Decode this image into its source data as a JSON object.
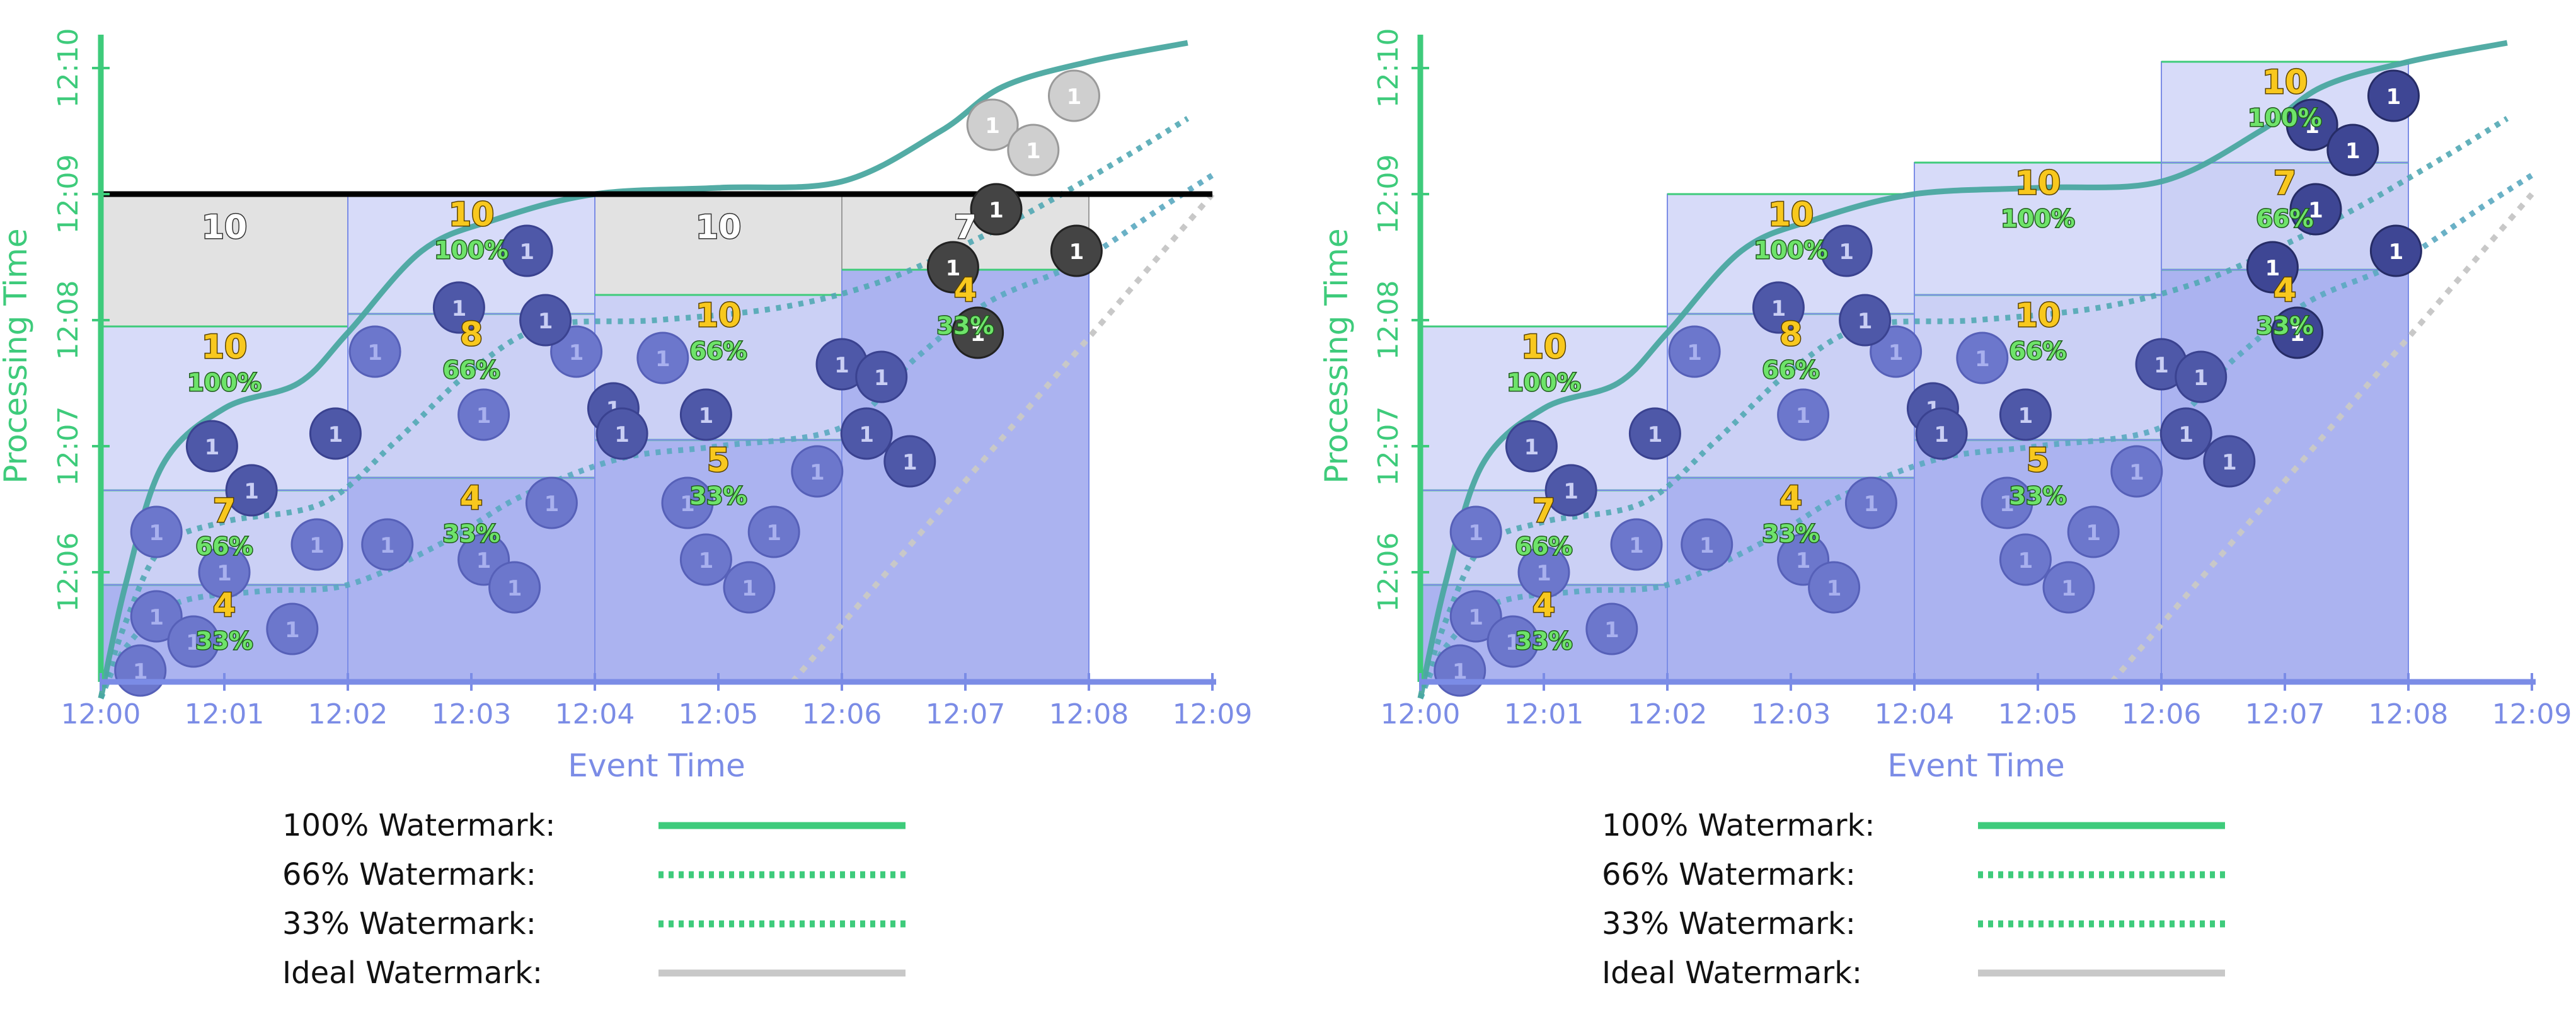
{
  "colors": {
    "green": "#3ecb7b",
    "teal": "#4aa8a0",
    "blue_axis": "#7b8ce6",
    "black_line": "#000000",
    "ideal": "#c8c8c8",
    "yellow": "#f8c81e",
    "yellow_outline": "#5a4300"
  },
  "axes": {
    "x_title": "Event Time",
    "y_title": "Processing Time",
    "x_ticks": [
      "12:00",
      "12:01",
      "12:02",
      "12:03",
      "12:04",
      "12:05",
      "12:06",
      "12:07",
      "12:08",
      "12:09"
    ],
    "y_ticks": [
      "12:06",
      "12:07",
      "12:08",
      "12:09",
      "12:10"
    ],
    "coin_label": "1"
  },
  "legend": [
    {
      "label": "100% Watermark:",
      "style": "solid",
      "color": "#3ecb7b"
    },
    {
      "label": "66% Watermark:",
      "style": "dotted",
      "color": "#3ecb7b"
    },
    {
      "label": "33% Watermark:",
      "style": "dotted",
      "color": "#3ecb7b"
    },
    {
      "label": "Ideal Watermark:",
      "style": "solid",
      "color": "#c8c8c8"
    }
  ],
  "panels": [
    {
      "name": "left",
      "windows": [
        {
          "start": 0,
          "end": 2,
          "panes": [
            {
              "bottom": 5,
              "top": 5.9,
              "count": "4",
              "pct": "33%"
            },
            {
              "bottom": 5.9,
              "top": 6.65,
              "count": "7",
              "pct": "66%"
            },
            {
              "bottom": 6.65,
              "top": 7.95,
              "count": "10",
              "pct": "100%"
            }
          ],
          "cap": {
            "top": 9.0,
            "count": "10"
          }
        },
        {
          "start": 2,
          "end": 4,
          "panes": [
            {
              "bottom": 5,
              "top": 6.75,
              "count": "4",
              "pct": "33%"
            },
            {
              "bottom": 6.75,
              "top": 8.05,
              "count": "8",
              "pct": "66%"
            },
            {
              "bottom": 8.05,
              "top": 9.0,
              "count": "10",
              "pct": "100%"
            }
          ]
        },
        {
          "start": 4,
          "end": 6,
          "panes": [
            {
              "bottom": 5,
              "top": 7.05,
              "count": "5",
              "pct": "33%"
            },
            {
              "bottom": 7.05,
              "top": 8.2,
              "count": "10",
              "pct": "66%"
            }
          ],
          "cap": {
            "top": 9.0,
            "count": "10"
          }
        },
        {
          "start": 6,
          "end": 8,
          "panes": [
            {
              "bottom": 5,
              "top": 8.4,
              "count": "4",
              "pct": "33%"
            }
          ],
          "cap": {
            "top": 9.0,
            "count": "7"
          }
        }
      ],
      "cutoff": 9.0
    },
    {
      "name": "right",
      "windows": [
        {
          "start": 0,
          "end": 2,
          "panes": [
            {
              "bottom": 5,
              "top": 5.9,
              "count": "4",
              "pct": "33%"
            },
            {
              "bottom": 5.9,
              "top": 6.65,
              "count": "7",
              "pct": "66%"
            },
            {
              "bottom": 6.65,
              "top": 7.95,
              "count": "10",
              "pct": "100%"
            }
          ]
        },
        {
          "start": 2,
          "end": 4,
          "panes": [
            {
              "bottom": 5,
              "top": 6.75,
              "count": "4",
              "pct": "33%"
            },
            {
              "bottom": 6.75,
              "top": 8.05,
              "count": "8",
              "pct": "66%"
            },
            {
              "bottom": 8.05,
              "top": 9.0,
              "count": "10",
              "pct": "100%"
            }
          ]
        },
        {
          "start": 4,
          "end": 6,
          "panes": [
            {
              "bottom": 5,
              "top": 7.05,
              "count": "5",
              "pct": "33%"
            },
            {
              "bottom": 7.05,
              "top": 8.2,
              "count": "10",
              "pct": "66%"
            },
            {
              "bottom": 8.2,
              "top": 9.25,
              "count": "10",
              "pct": "100%"
            }
          ]
        },
        {
          "start": 6,
          "end": 8,
          "panes": [
            {
              "bottom": 5,
              "top": 8.4,
              "count": "4",
              "pct": "33%"
            },
            {
              "bottom": 8.4,
              "top": 9.25,
              "count": "7",
              "pct": "66%"
            },
            {
              "bottom": 9.25,
              "top": 10.05,
              "count": "10",
              "pct": "100%"
            }
          ]
        }
      ],
      "cutoff": null
    }
  ],
  "coins": [
    {
      "x": 0.32,
      "y": 5.22,
      "state": "dark"
    },
    {
      "x": 0.45,
      "y": 5.65,
      "state": "dark"
    },
    {
      "x": 0.75,
      "y": 5.45,
      "state": "dark"
    },
    {
      "x": 1.55,
      "y": 5.55,
      "state": "dark"
    },
    {
      "x": 0.45,
      "y": 6.32,
      "state": "dark"
    },
    {
      "x": 1.0,
      "y": 6.0,
      "state": "dark"
    },
    {
      "x": 1.75,
      "y": 6.22,
      "state": "dark"
    },
    {
      "x": 0.9,
      "y": 7.0,
      "state": "mid"
    },
    {
      "x": 1.22,
      "y": 6.65,
      "state": "mid"
    },
    {
      "x": 1.9,
      "y": 7.1,
      "state": "mid"
    },
    {
      "x": 2.32,
      "y": 6.22,
      "state": "dark"
    },
    {
      "x": 3.1,
      "y": 6.1,
      "state": "dark"
    },
    {
      "x": 3.35,
      "y": 5.88,
      "state": "dark"
    },
    {
      "x": 3.65,
      "y": 6.55,
      "state": "dark"
    },
    {
      "x": 2.22,
      "y": 7.75,
      "state": "dark"
    },
    {
      "x": 3.1,
      "y": 7.25,
      "state": "dark"
    },
    {
      "x": 3.85,
      "y": 7.75,
      "state": "dark"
    },
    {
      "x": 3.6,
      "y": 8.0,
      "state": "mid"
    },
    {
      "x": 2.9,
      "y": 8.1,
      "state": "mid"
    },
    {
      "x": 3.45,
      "y": 8.55,
      "state": "mid"
    },
    {
      "x": 4.15,
      "y": 7.3,
      "state": "mid"
    },
    {
      "x": 4.22,
      "y": 7.1,
      "state": "mid"
    },
    {
      "x": 4.55,
      "y": 7.7,
      "state": "dark"
    },
    {
      "x": 4.9,
      "y": 7.25,
      "state": "mid"
    },
    {
      "x": 4.9,
      "y": 6.1,
      "state": "dark"
    },
    {
      "x": 4.75,
      "y": 6.55,
      "state": "dark"
    },
    {
      "x": 5.25,
      "y": 5.88,
      "state": "dark"
    },
    {
      "x": 5.45,
      "y": 6.32,
      "state": "dark"
    },
    {
      "x": 5.8,
      "y": 6.8,
      "state": "dark"
    },
    {
      "x": 6.2,
      "y": 7.1,
      "state": "mid"
    },
    {
      "x": 6.0,
      "y": 7.65,
      "state": "mid"
    },
    {
      "x": 6.32,
      "y": 7.55,
      "state": "mid"
    },
    {
      "x": 6.55,
      "y": 6.88,
      "state": "mid"
    },
    {
      "x": 7.1,
      "y": 7.9,
      "state": "late"
    },
    {
      "x": 6.9,
      "y": 8.42,
      "state": "late"
    },
    {
      "x": 7.25,
      "y": 8.88,
      "state": "late"
    },
    {
      "x": 7.9,
      "y": 8.55,
      "state": "late"
    },
    {
      "x": 7.22,
      "y": 9.55,
      "state": "dropped"
    },
    {
      "x": 7.55,
      "y": 9.35,
      "state": "dropped"
    },
    {
      "x": 7.88,
      "y": 9.78,
      "state": "dropped"
    }
  ]
}
